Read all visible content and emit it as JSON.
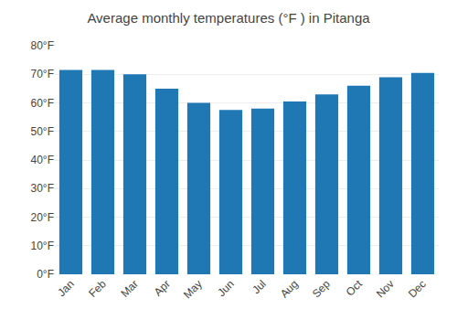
{
  "chart_data": {
    "type": "bar",
    "title": "Average monthly temperatures (°F ) in Pitanga",
    "categories": [
      "Jan",
      "Feb",
      "Mar",
      "Apr",
      "May",
      "Jun",
      "Jul",
      "Aug",
      "Sep",
      "Oct",
      "Nov",
      "Dec"
    ],
    "values": [
      71.5,
      71.5,
      70,
      65,
      60,
      57.5,
      58,
      60.5,
      63,
      66,
      69,
      70.5
    ],
    "ylim": [
      0,
      80
    ],
    "yticks": [
      {
        "value": 0,
        "label": "0°F"
      },
      {
        "value": 10,
        "label": "10°F"
      },
      {
        "value": 20,
        "label": "20°F"
      },
      {
        "value": 30,
        "label": "30°F"
      },
      {
        "value": 40,
        "label": "40°F"
      },
      {
        "value": 50,
        "label": "50°F"
      },
      {
        "value": 60,
        "label": "60°F"
      },
      {
        "value": 70,
        "label": "70°F"
      },
      {
        "value": 80,
        "label": "80°F"
      }
    ],
    "grid": true
  }
}
